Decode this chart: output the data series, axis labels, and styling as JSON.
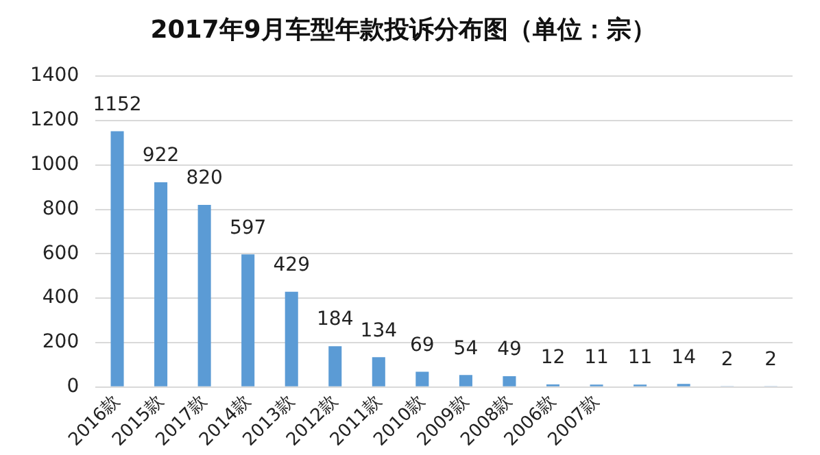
{
  "chart_data": {
    "type": "bar",
    "title": "2017年9月车型年款投诉分布图（单位：宗）",
    "categories": [
      "2016款",
      "2015款",
      "2017款",
      "2014款",
      "2013款",
      "2012款",
      "2011款",
      "2010款",
      "2009款",
      "2008款",
      "2006款",
      "2007款",
      null,
      null,
      null,
      null
    ],
    "values": [
      1152,
      922,
      820,
      597,
      429,
      184,
      134,
      69,
      54,
      49,
      12,
      11,
      11,
      14,
      2,
      2
    ],
    "color": "#5b9bd5",
    "ylim": [
      0,
      1400
    ],
    "yticks": [
      0,
      200,
      400,
      600,
      800,
      1000,
      1200,
      1400
    ],
    "grid": "y",
    "data_labels": true,
    "legend": false
  }
}
